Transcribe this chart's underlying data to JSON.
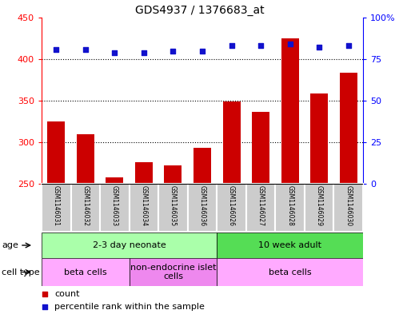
{
  "title": "GDS4937 / 1376683_at",
  "samples": [
    "GSM1146031",
    "GSM1146032",
    "GSM1146033",
    "GSM1146034",
    "GSM1146035",
    "GSM1146036",
    "GSM1146026",
    "GSM1146027",
    "GSM1146028",
    "GSM1146029",
    "GSM1146030"
  ],
  "counts": [
    325,
    310,
    258,
    276,
    272,
    293,
    349,
    337,
    425,
    359,
    384
  ],
  "percentiles": [
    81,
    81,
    79,
    79,
    80,
    80,
    83,
    83,
    84,
    82,
    83
  ],
  "ylim_left": [
    250,
    450
  ],
  "ylim_right": [
    0,
    100
  ],
  "yticks_left": [
    250,
    300,
    350,
    400,
    450
  ],
  "ytick_labels_left": [
    "250",
    "300",
    "350",
    "400",
    "450"
  ],
  "yticks_right": [
    0,
    25,
    50,
    75,
    100
  ],
  "ytick_labels_right": [
    "0",
    "25",
    "50",
    "75",
    "100%"
  ],
  "bar_color": "#cc0000",
  "scatter_color": "#1111cc",
  "dotted_line_color": "#000000",
  "age_groups": [
    {
      "label": "2-3 day neonate",
      "start": 0,
      "end": 6,
      "color": "#aaffaa"
    },
    {
      "label": "10 week adult",
      "start": 6,
      "end": 11,
      "color": "#55dd55"
    }
  ],
  "cell_type_groups": [
    {
      "label": "beta cells",
      "start": 0,
      "end": 3,
      "color": "#ffaaff"
    },
    {
      "label": "non-endocrine islet\ncells",
      "start": 3,
      "end": 6,
      "color": "#ee88ee"
    },
    {
      "label": "beta cells",
      "start": 6,
      "end": 11,
      "color": "#ffaaff"
    }
  ],
  "background_color": "#ffffff",
  "plot_bg_color": "#ffffff",
  "sample_bg_color": "#cccccc",
  "border_color": "#000000"
}
